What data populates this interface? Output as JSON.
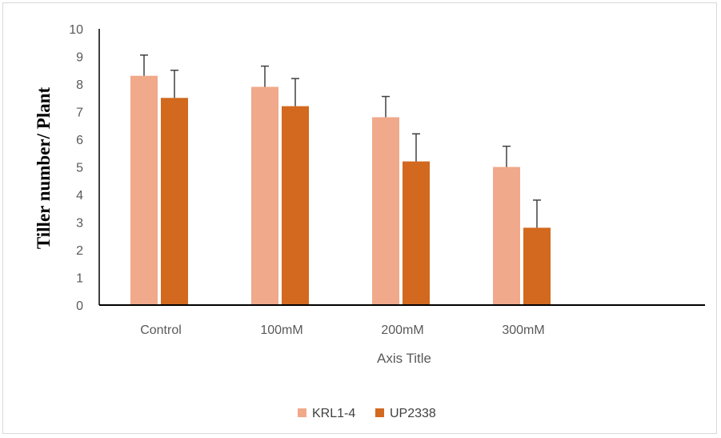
{
  "chart_data": {
    "type": "bar",
    "categories": [
      "Control",
      "100mM",
      "200mM",
      "300mM"
    ],
    "series": [
      {
        "name": "KRL1-4",
        "color": "#f0a98a",
        "values": [
          8.3,
          7.9,
          6.8,
          5.0
        ],
        "errors": [
          0.75,
          0.75,
          0.75,
          0.75
        ]
      },
      {
        "name": "UP2338",
        "color": "#d2691e",
        "values": [
          7.5,
          7.2,
          5.2,
          2.8
        ],
        "errors": [
          1.0,
          1.0,
          1.0,
          1.0
        ]
      }
    ],
    "xlabel": "Axis Title",
    "ylabel": "Tiller number/ Plant",
    "ylim": [
      0,
      10
    ],
    "yticks": [
      "0",
      "1",
      "2",
      "3",
      "4",
      "5",
      "6",
      "7",
      "8",
      "9",
      "10"
    ],
    "grid": false,
    "legend_position": "bottom"
  }
}
